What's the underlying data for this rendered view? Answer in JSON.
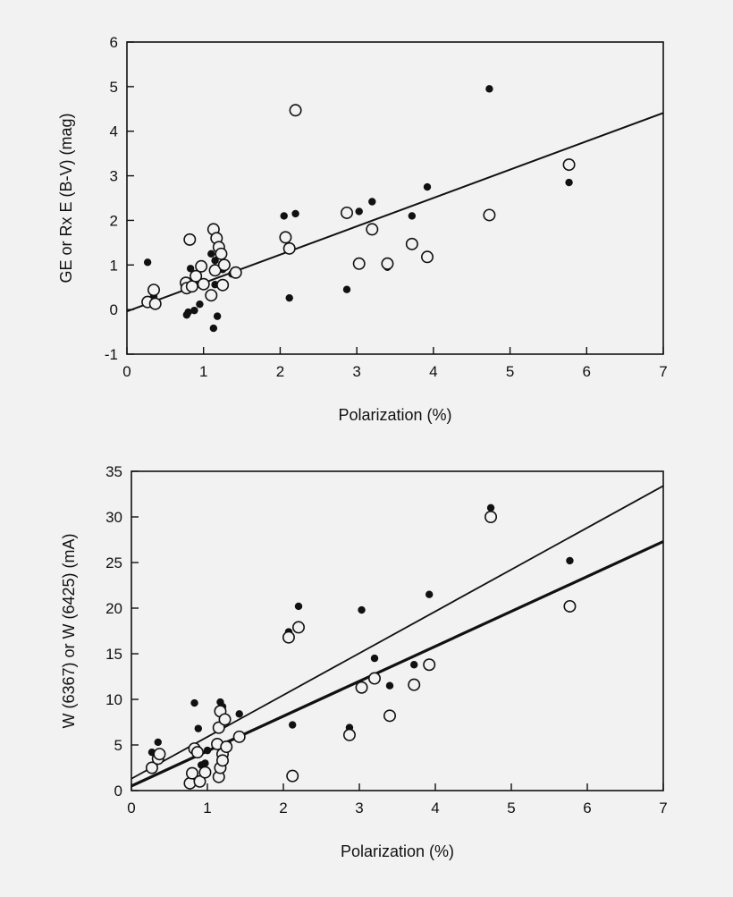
{
  "colors": {
    "background": "#f2f2f2",
    "ink": "#111111"
  },
  "chart_data": [
    {
      "type": "scatter",
      "xlabel": "Polarization (%)",
      "ylabel": "GE  or  Rx E (B-V) (mag)",
      "xlim": [
        0,
        7
      ],
      "ylim": [
        -1,
        6
      ],
      "xticks": [
        0,
        1,
        2,
        3,
        4,
        5,
        6,
        7
      ],
      "yticks": [
        -1,
        0,
        1,
        2,
        3,
        4,
        5,
        6
      ],
      "series": [
        {
          "name": "filled",
          "marker": "filled-circle",
          "points": [
            [
              0.27,
              1.06
            ],
            [
              0.35,
              0.38
            ],
            [
              0.35,
              0.3
            ],
            [
              0.78,
              -0.12
            ],
            [
              0.8,
              -0.06
            ],
            [
              0.83,
              0.92
            ],
            [
              0.83,
              0.57
            ],
            [
              0.88,
              0.64
            ],
            [
              0.88,
              -0.02
            ],
            [
              0.95,
              0.12
            ],
            [
              0.97,
              1.0
            ],
            [
              1.1,
              1.25
            ],
            [
              1.13,
              -0.42
            ],
            [
              1.15,
              1.1
            ],
            [
              1.15,
              0.56
            ],
            [
              1.18,
              1.45
            ],
            [
              1.18,
              -0.15
            ],
            [
              1.23,
              1.3
            ],
            [
              1.25,
              0.9
            ],
            [
              1.37,
              0.8
            ],
            [
              2.05,
              2.1
            ],
            [
              2.12,
              0.26
            ],
            [
              2.2,
              2.15
            ],
            [
              2.87,
              0.45
            ],
            [
              3.03,
              2.2
            ],
            [
              3.2,
              2.42
            ],
            [
              3.4,
              0.95
            ],
            [
              3.72,
              2.1
            ],
            [
              3.92,
              2.75
            ],
            [
              4.73,
              4.95
            ],
            [
              5.77,
              2.85
            ]
          ]
        },
        {
          "name": "open",
          "marker": "open-circle",
          "points": [
            [
              0.27,
              0.17
            ],
            [
              0.35,
              0.44
            ],
            [
              0.37,
              0.13
            ],
            [
              0.77,
              0.6
            ],
            [
              0.78,
              0.48
            ],
            [
              0.82,
              1.57
            ],
            [
              0.85,
              0.52
            ],
            [
              0.9,
              0.75
            ],
            [
              0.97,
              0.97
            ],
            [
              1.0,
              0.57
            ],
            [
              1.1,
              0.32
            ],
            [
              1.13,
              1.8
            ],
            [
              1.15,
              0.88
            ],
            [
              1.17,
              1.6
            ],
            [
              1.2,
              1.4
            ],
            [
              1.23,
              1.25
            ],
            [
              1.25,
              0.55
            ],
            [
              1.27,
              1.0
            ],
            [
              1.42,
              0.83
            ],
            [
              2.07,
              1.62
            ],
            [
              2.12,
              1.37
            ],
            [
              2.2,
              4.47
            ],
            [
              2.87,
              2.17
            ],
            [
              3.03,
              1.03
            ],
            [
              3.2,
              1.8
            ],
            [
              3.4,
              1.03
            ],
            [
              3.72,
              1.47
            ],
            [
              3.92,
              1.18
            ],
            [
              4.73,
              2.12
            ],
            [
              5.77,
              3.25
            ]
          ]
        }
      ],
      "fit_lines": [
        {
          "name": "fit",
          "x": [
            0,
            7
          ],
          "y": [
            -0.04,
            4.41
          ],
          "weight": "normal"
        }
      ]
    },
    {
      "type": "scatter",
      "xlabel": "Polarization (%)",
      "ylabel": "W (6367) or  W (6425) (mA)",
      "xlim": [
        0,
        7
      ],
      "ylim": [
        0,
        35
      ],
      "xticks": [
        0,
        1,
        2,
        3,
        4,
        5,
        6,
        7
      ],
      "yticks": [
        0,
        5,
        10,
        15,
        20,
        25,
        30,
        35
      ],
      "series": [
        {
          "name": "filled",
          "marker": "filled-circle",
          "points": [
            [
              0.27,
              4.2
            ],
            [
              0.35,
              5.3
            ],
            [
              0.83,
              9.6
            ],
            [
              0.88,
              6.8
            ],
            [
              0.92,
              2.8
            ],
            [
              0.97,
              3.0
            ],
            [
              1.0,
              4.4
            ],
            [
              1.17,
              9.7
            ],
            [
              1.2,
              9.2
            ],
            [
              1.23,
              7.5
            ],
            [
              1.27,
              5.1
            ],
            [
              1.42,
              8.4
            ],
            [
              2.07,
              17.4
            ],
            [
              2.12,
              7.2
            ],
            [
              2.2,
              20.2
            ],
            [
              2.87,
              6.9
            ],
            [
              3.03,
              19.8
            ],
            [
              3.2,
              14.5
            ],
            [
              3.4,
              11.5
            ],
            [
              3.72,
              13.8
            ],
            [
              3.92,
              21.5
            ],
            [
              4.73,
              31.0
            ],
            [
              5.77,
              25.2
            ]
          ]
        },
        {
          "name": "open",
          "marker": "open-circle",
          "points": [
            [
              0.27,
              2.5
            ],
            [
              0.35,
              3.5
            ],
            [
              0.37,
              4.0
            ],
            [
              0.77,
              0.8
            ],
            [
              0.8,
              1.9
            ],
            [
              0.83,
              4.6
            ],
            [
              0.87,
              4.2
            ],
            [
              0.9,
              1.0
            ],
            [
              0.97,
              2.0
            ],
            [
              1.13,
              5.1
            ],
            [
              1.15,
              6.9
            ],
            [
              1.15,
              1.5
            ],
            [
              1.17,
              2.5
            ],
            [
              1.17,
              8.7
            ],
            [
              1.2,
              4.0
            ],
            [
              1.2,
              3.3
            ],
            [
              1.23,
              7.8
            ],
            [
              1.25,
              4.8
            ],
            [
              1.42,
              5.9
            ],
            [
              2.07,
              16.8
            ],
            [
              2.12,
              1.6
            ],
            [
              2.2,
              17.9
            ],
            [
              2.87,
              6.1
            ],
            [
              3.03,
              11.3
            ],
            [
              3.2,
              12.3
            ],
            [
              3.4,
              8.2
            ],
            [
              3.72,
              11.6
            ],
            [
              3.92,
              13.8
            ],
            [
              4.73,
              30.0
            ],
            [
              5.77,
              20.2
            ]
          ]
        }
      ],
      "fit_lines": [
        {
          "name": "fit-thin",
          "x": [
            0,
            7
          ],
          "y": [
            1.3,
            33.4
          ],
          "weight": "thin"
        },
        {
          "name": "fit-thick",
          "x": [
            0,
            7
          ],
          "y": [
            0.5,
            27.3
          ],
          "weight": "thick"
        }
      ]
    }
  ]
}
